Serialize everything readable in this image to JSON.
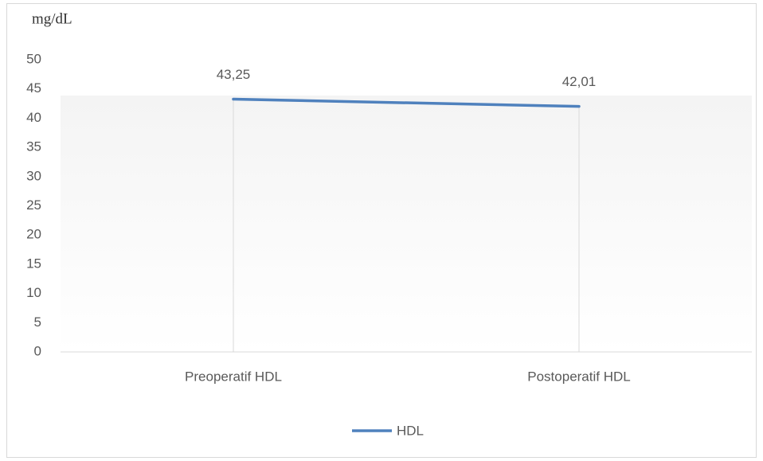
{
  "chart_data": {
    "type": "line",
    "y_label": "mg/dL",
    "categories": [
      "Preoperatif HDL",
      "Postoperatif HDL"
    ],
    "series": [
      {
        "name": "HDL",
        "color": "#4f81bd",
        "values": [
          43.25,
          42.01
        ],
        "value_labels": [
          "43,25",
          "42,01"
        ]
      }
    ],
    "ylim": [
      0,
      50
    ],
    "yticks": [
      0,
      5,
      10,
      15,
      20,
      25,
      30,
      35,
      40,
      45,
      50
    ],
    "drop_lines": true,
    "legend": "bottom"
  }
}
